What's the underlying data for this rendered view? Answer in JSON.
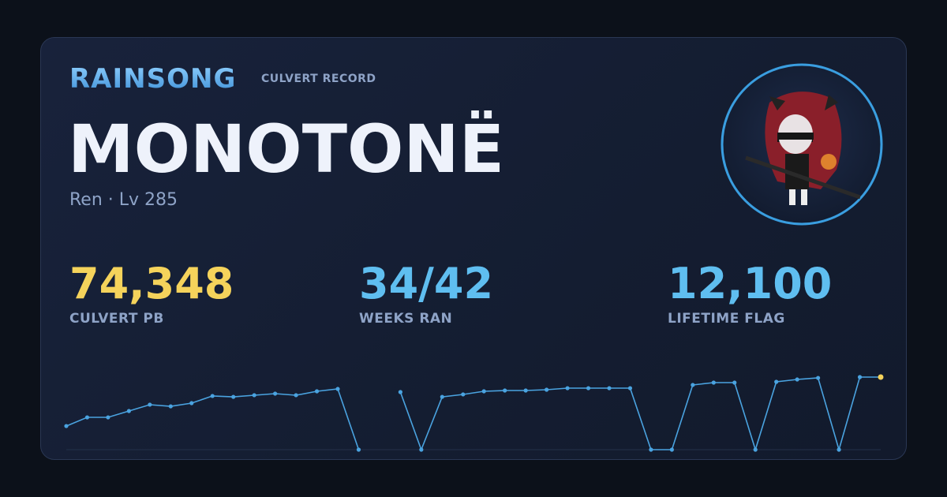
{
  "header": {
    "brand": "RAINSONG",
    "section": "CULVERT RECORD"
  },
  "character": {
    "name": "MONOTONË",
    "subtitle": "Ren · Lv 285"
  },
  "stats": [
    {
      "value": "74,348",
      "label": "CULVERT PB",
      "color": "#f5d35b"
    },
    {
      "value": "34/42",
      "label": "WEEKS RAN",
      "color": "#5fbef0"
    },
    {
      "value": "12,100",
      "label": "LIFETIME FLAG",
      "color": "#5fbef0"
    }
  ],
  "sparkline": {
    "type": "line",
    "color": "#4aa3e0",
    "highlight_color": "#f5d35b",
    "values": [
      24200,
      33100,
      33100,
      39600,
      46100,
      44400,
      47700,
      55000,
      54100,
      55800,
      57400,
      55800,
      59800,
      62200,
      0,
      null,
      59000,
      0,
      54100,
      56600,
      59800,
      60600,
      60600,
      61400,
      63000,
      63000,
      63000,
      63000,
      0,
      0,
      66300,
      68700,
      68700,
      0,
      69500,
      71900,
      73500,
      0,
      74348,
      74348
    ]
  }
}
